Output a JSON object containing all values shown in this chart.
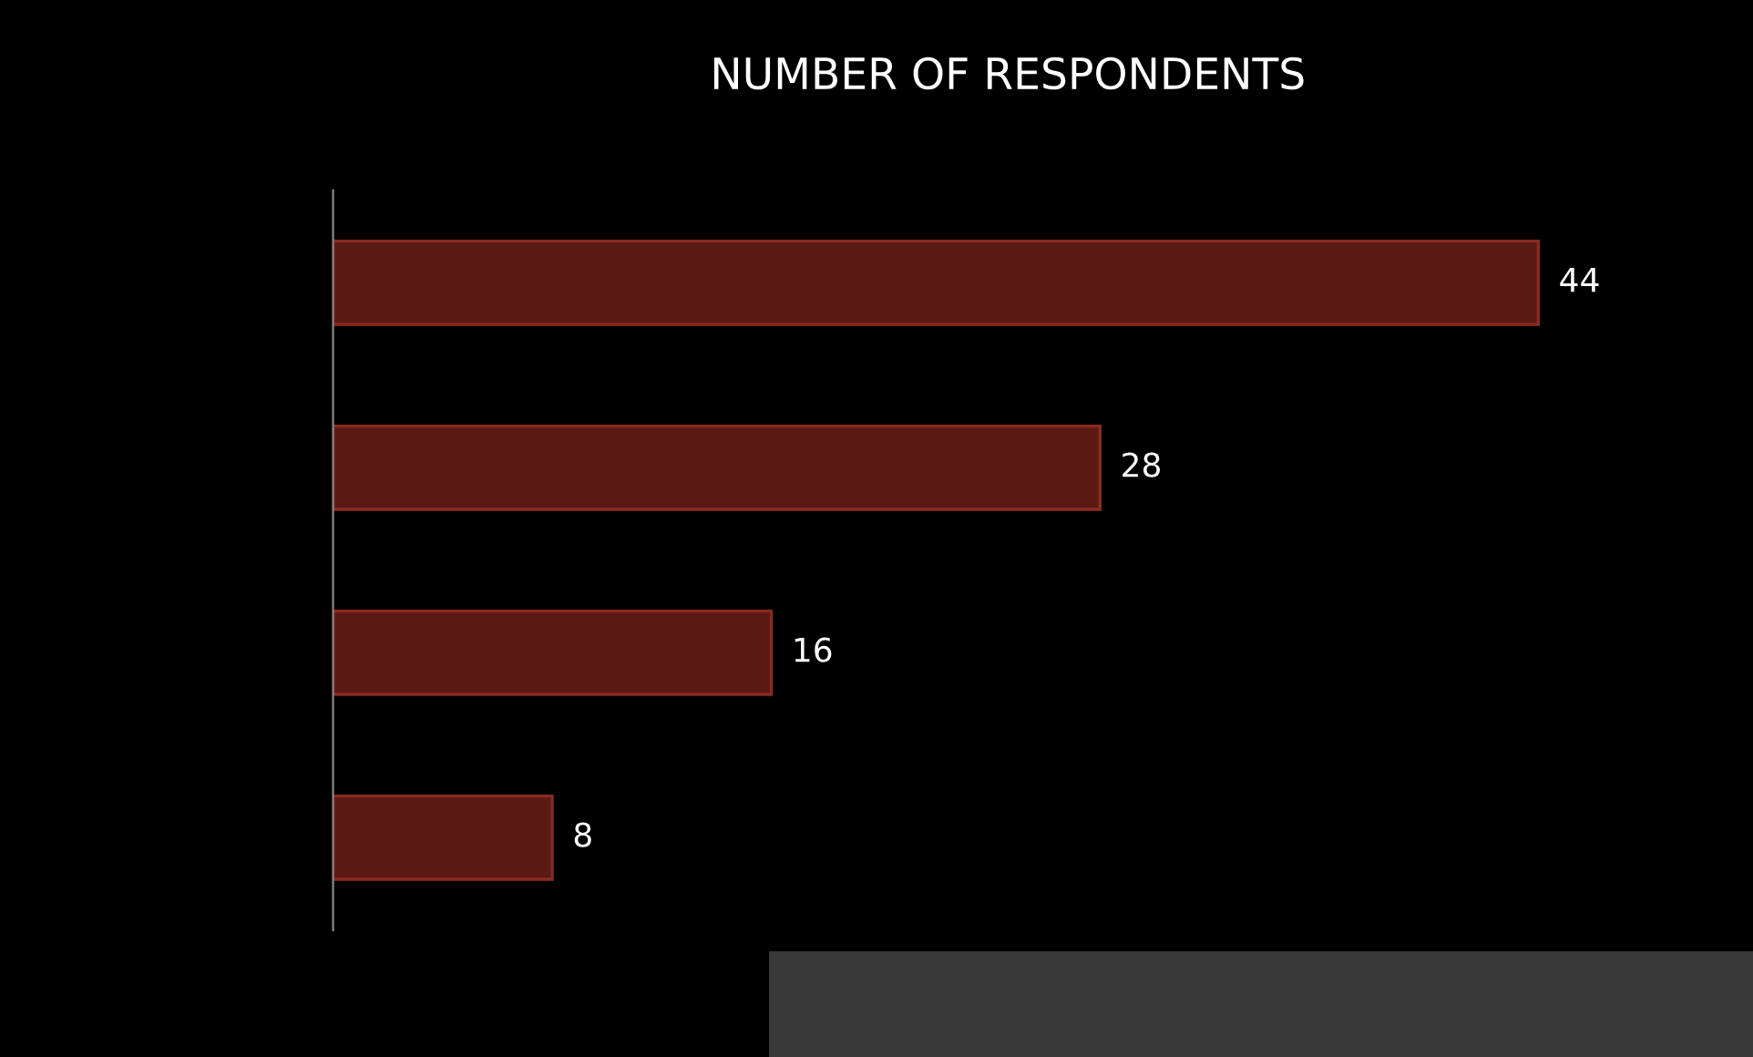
{
  "chart_data": {
    "type": "bar",
    "orientation": "horizontal",
    "title": "NUMBER OF RESPONDENTS",
    "categories": [
      null,
      null,
      null,
      null
    ],
    "values": [
      44,
      28,
      16,
      8
    ],
    "color": "#5a1a14",
    "data_labels": true,
    "grid": false
  }
}
